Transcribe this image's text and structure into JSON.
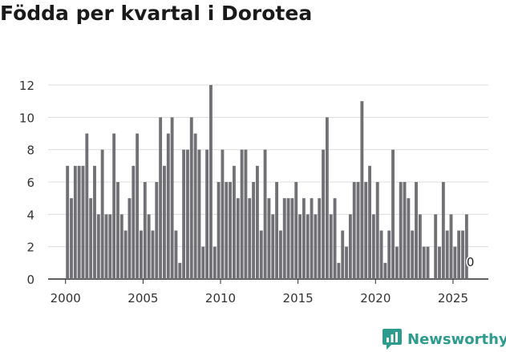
{
  "chart_data": {
    "type": "bar",
    "title": "Födda per kvartal i Dorotea",
    "xlabel": "",
    "ylabel": "",
    "ylim": [
      0,
      12
    ],
    "yticks": [
      0,
      2,
      4,
      6,
      8,
      10,
      12
    ],
    "xlim": [
      1998.875,
      2027.125
    ],
    "xticks": [
      2000,
      2005,
      2010,
      2015,
      2020,
      2025
    ],
    "xtick_labels": [
      "2000",
      "2005",
      "2010",
      "2015",
      "2020",
      "2025"
    ],
    "grid": true,
    "bar_color": "#717075",
    "series": [
      {
        "name": "Födda",
        "start": "2000 Q1",
        "values": [
          7,
          5,
          7,
          7,
          7,
          9,
          5,
          7,
          4,
          8,
          4,
          4,
          9,
          6,
          4,
          3,
          5,
          7,
          9,
          3,
          6,
          4,
          3,
          6,
          10,
          7,
          9,
          10,
          3,
          1,
          8,
          8,
          10,
          9,
          8,
          2,
          8,
          12,
          2,
          6,
          8,
          6,
          6,
          7,
          5,
          8,
          8,
          5,
          6,
          7,
          3,
          8,
          5,
          4,
          6,
          3,
          5,
          5,
          5,
          6,
          4,
          5,
          4,
          5,
          4,
          5,
          8,
          10,
          4,
          5,
          1,
          3,
          2,
          4,
          6,
          6,
          11,
          6,
          7,
          4,
          6,
          3,
          1,
          3,
          8,
          2,
          6,
          6,
          5,
          3,
          6,
          4,
          2,
          2,
          0,
          4,
          2,
          6,
          3,
          4,
          2,
          3,
          3,
          4,
          0
        ]
      }
    ],
    "annotations": [
      {
        "label": "0",
        "period": "2026 Q1"
      }
    ]
  },
  "branding": {
    "name": "Newsworthy"
  }
}
